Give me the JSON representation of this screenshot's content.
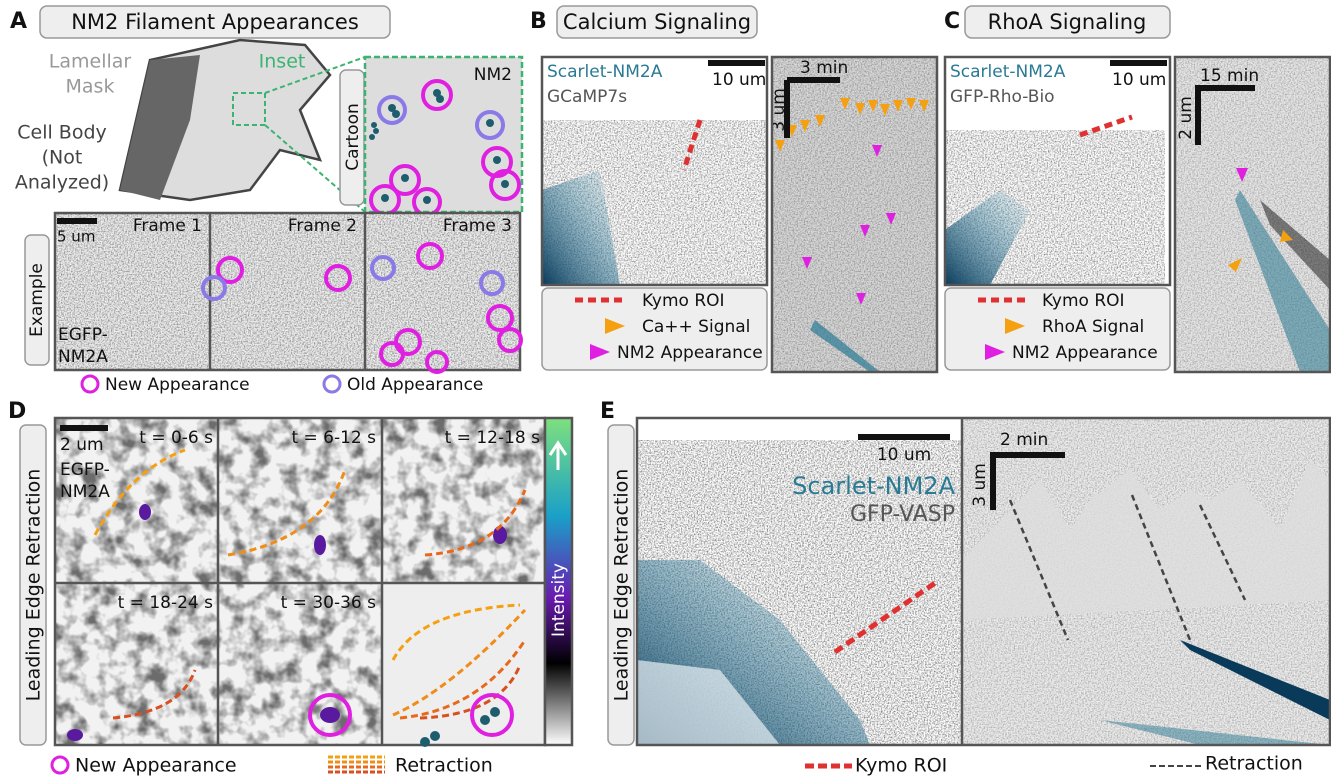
{
  "panel_a": {
    "label": "A",
    "title": "NM2 Filament Appearances",
    "mask_label": [
      "Lamellar",
      "Mask"
    ],
    "inset_label": "Inset",
    "cell_body_label": [
      "Cell Body",
      "(Not",
      "Analyzed)"
    ],
    "cartoon_label": "Cartoon",
    "cartoon_title": "NM2",
    "example_label": "Example",
    "scale_bar": "5 um",
    "frames": [
      "Frame 1",
      "Frame 2",
      "Frame 3"
    ],
    "probe": [
      "EGFP-",
      "NM2A"
    ],
    "legend": [
      "New Appearance",
      "Old Appearance"
    ]
  },
  "panel_b": {
    "label": "B",
    "title": "Calcium Signaling",
    "probes": [
      "Scarlet-NM2A",
      "GCaMP7s"
    ],
    "scale_bar": "10 um",
    "time_bar": "3 min",
    "space_bar": "3 um",
    "legend": [
      "Kymo ROI",
      "Ca++ Signal",
      "NM2 Appearance"
    ]
  },
  "panel_c": {
    "label": "C",
    "title": "RhoA Signaling",
    "probes": [
      "Scarlet-NM2A",
      "GFP-Rho-Bio"
    ],
    "scale_bar": "10 um",
    "time_bar": "15 min",
    "space_bar": "2 um",
    "legend": [
      "Kymo ROI",
      "RhoA Signal",
      "NM2 Appearance"
    ]
  },
  "panel_d": {
    "label": "D",
    "side_label": "Leading Edge Retraction",
    "scale_bar": "2 um",
    "times": [
      "t = 0-6 s",
      "t = 6-12 s",
      "t = 12-18 s",
      "t = 18-24 s",
      "t = 30-36 s"
    ],
    "probe": [
      "EGFP-",
      "NM2A"
    ],
    "colorbar_label": "Intensity",
    "legend": [
      "New Appearance",
      "Retraction"
    ]
  },
  "panel_e": {
    "label": "E",
    "side_label": "Leading Edge Retraction",
    "scale_bar": "10 um",
    "probes": [
      "Scarlet-NM2A",
      "GFP-VASP"
    ],
    "time_bar": "2 min",
    "space_bar": "3 um",
    "legend": [
      "Kymo ROI",
      "Retraction"
    ]
  }
}
